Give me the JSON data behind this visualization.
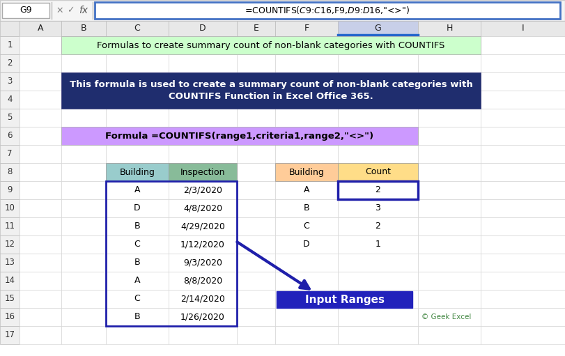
{
  "title_bar": "=COUNTIFS($C$9:$C$16,F9,$D$9:$D$16,\"<>\")",
  "cell_ref": "G9",
  "row1_text": "Formulas to create summary count of non-blank categories with COUNTIFS",
  "row1_bg": "#ccffcc",
  "row34_text_line1": "This formula is used to create a summary count of non-blank categories with",
  "row34_text_line2": "COUNTIFS Function in Excel Office 365.",
  "row34_bg": "#1f2d6e",
  "row34_text_color": "#ffffff",
  "row6_text": "Formula =COUNTIFS(range1,criteria1,range2,\"<>\")",
  "row6_bg": "#cc99ff",
  "col_headers_bg_building": "#99cccc",
  "col_headers_bg_inspection": "#88bb99",
  "col_headers_bg_right_building": "#ffcc99",
  "col_headers_bg_count": "#ffdd88",
  "building_header": "Building",
  "inspection_header": "Inspection",
  "building_data": [
    "A",
    "D",
    "B",
    "C",
    "B",
    "A",
    "C",
    "B"
  ],
  "inspection_data": [
    "2/3/2020",
    "4/8/2020",
    "4/29/2020",
    "1/12/2020",
    "9/3/2020",
    "8/8/2020",
    "2/14/2020",
    "1/26/2020"
  ],
  "summary_buildings": [
    "A",
    "B",
    "C",
    "D"
  ],
  "summary_counts": [
    "2",
    "3",
    "2",
    "1"
  ],
  "input_ranges_text": "Input Ranges",
  "input_ranges_bg": "#2222bb",
  "input_ranges_text_color": "#ffffff",
  "geek_excel_text": "© Geek Excel",
  "cell_border_color": "#1f1faa",
  "formula_bar_border": "#4472c4",
  "bg_color": "#ffffff",
  "col_header_row_bg": "#e8e8e8",
  "selected_col_bg": "#c8cfe8",
  "selected_col_bottom": "#2266cc",
  "grid_line_color": "#d0d0d0",
  "row_num_bg": "#f0f0f0",
  "formula_bar_bg": "#f5f5f5"
}
